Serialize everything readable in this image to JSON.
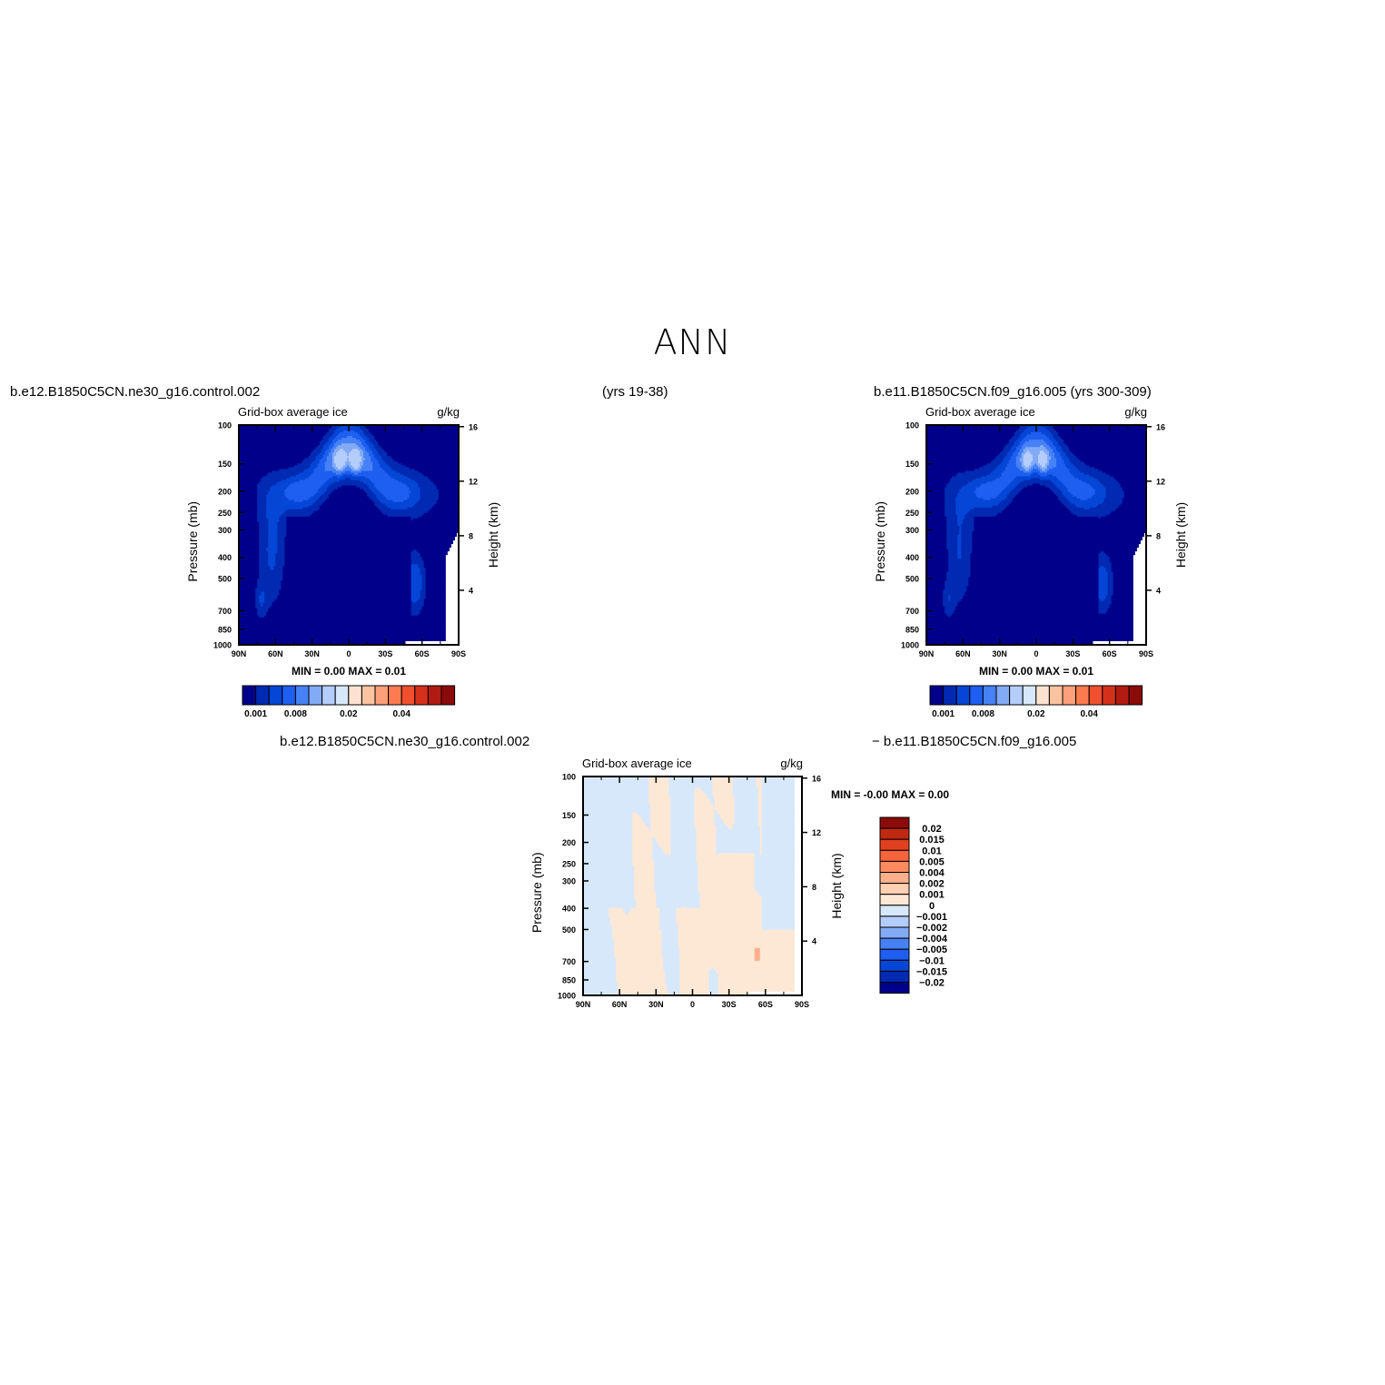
{
  "page_title": "ANN",
  "labels": {
    "case1": "b.e12.B1850C5CN.ne30_g16.control.002",
    "case1_years": "(yrs 19-38)",
    "case2": "b.e11.B1850C5CN.f09_g16.005 (yrs 300-309)",
    "diff_case1": "b.e12.B1850C5CN.ne30_g16.control.002",
    "diff_case2": "− b.e11.B1850C5CN.f09_g16.005"
  },
  "colors": {
    "field": [
      "#00008b",
      "#002ab2",
      "#0546d6",
      "#1e5ef0",
      "#4682f5",
      "#82aaf5",
      "#b4cdfa",
      "#d7e8fb",
      "#fde3cf",
      "#fcc3a1",
      "#fca079",
      "#fa7b4f",
      "#f0502d",
      "#d5301a",
      "#b21a12",
      "#8b0a0a"
    ],
    "diff": [
      "#00008b",
      "#002ab2",
      "#0546d6",
      "#1e5ef0",
      "#4682f5",
      "#82aaf5",
      "#b4cdfa",
      "#d7e8fb",
      "#fde8d6",
      "#fdd0b4",
      "#fcb08c",
      "#fc8a5f",
      "#f5643a",
      "#e0401f",
      "#c02812",
      "#8b0a0a"
    ],
    "missing": "#ffffff"
  },
  "chart_data": [
    {
      "type": "heatmap",
      "title": "Grid-box average ice",
      "units": "g/kg",
      "xlabel": "",
      "ylabel": "Pressure (mb)",
      "ylabel_right": "Height (km)",
      "x_ticks": [
        "90N",
        "60N",
        "30N",
        "0",
        "30S",
        "60S",
        "90S"
      ],
      "x_tick_values": [
        90,
        60,
        30,
        0,
        -30,
        -60,
        -90
      ],
      "y_ticks": [
        "100",
        "150",
        "200",
        "250",
        "300",
        "400",
        "500",
        "700",
        "850",
        "1000"
      ],
      "y_tick_values": [
        100,
        150,
        200,
        250,
        300,
        400,
        500,
        700,
        850,
        1000
      ],
      "y_scale": "log",
      "y_right_ticks": [
        "16",
        "12",
        "8",
        "4"
      ],
      "y_right_tick_values": [
        16,
        12,
        8,
        4
      ],
      "min_max_label": "MIN =     0.00   MAX =     0.01",
      "legend_labels": [
        "0.001",
        "0.008",
        "0.02",
        "0.04"
      ],
      "legend_label_levels": [
        0,
        3,
        7,
        11
      ],
      "legend_boxes": 16,
      "legend_position": "below"
    },
    {
      "type": "heatmap",
      "title": "Grid-box average ice",
      "units": "g/kg",
      "xlabel": "",
      "ylabel": "Pressure (mb)",
      "ylabel_right": "Height (km)",
      "x_ticks": [
        "90N",
        "60N",
        "30N",
        "0",
        "30S",
        "60S",
        "90S"
      ],
      "x_tick_values": [
        90,
        60,
        30,
        0,
        -30,
        -60,
        -90
      ],
      "y_ticks": [
        "100",
        "150",
        "200",
        "250",
        "300",
        "400",
        "500",
        "700",
        "850",
        "1000"
      ],
      "y_tick_values": [
        100,
        150,
        200,
        250,
        300,
        400,
        500,
        700,
        850,
        1000
      ],
      "y_scale": "log",
      "y_right_ticks": [
        "16",
        "12",
        "8",
        "4"
      ],
      "y_right_tick_values": [
        16,
        12,
        8,
        4
      ],
      "min_max_label": "MIN =     0.00   MAX =     0.01",
      "legend_labels": [
        "0.001",
        "0.008",
        "0.02",
        "0.04"
      ],
      "legend_label_levels": [
        0,
        3,
        7,
        11
      ],
      "legend_boxes": 16,
      "legend_position": "below"
    },
    {
      "type": "heatmap",
      "title": "Grid-box average ice",
      "units": "g/kg",
      "xlabel": "",
      "ylabel": "Pressure (mb)",
      "ylabel_right": "Height (km)",
      "x_ticks": [
        "90N",
        "60N",
        "30N",
        "0",
        "30S",
        "60S",
        "90S"
      ],
      "x_tick_values": [
        90,
        60,
        30,
        0,
        -30,
        -60,
        -90
      ],
      "y_ticks": [
        "100",
        "150",
        "200",
        "250",
        "300",
        "400",
        "500",
        "700",
        "850",
        "1000"
      ],
      "y_tick_values": [
        100,
        150,
        200,
        250,
        300,
        400,
        500,
        700,
        850,
        1000
      ],
      "y_scale": "log",
      "y_right_ticks": [
        "16",
        "12",
        "8",
        "4"
      ],
      "y_right_tick_values": [
        16,
        12,
        8,
        4
      ],
      "min_max_label": "MIN =    -0.00   MAX =     0.00",
      "legend_labels": [
        "0.02",
        "0.015",
        "0.01",
        "0.005",
        "0.004",
        "0.002",
        "0.001",
        "0",
        "-0.001",
        "-0.002",
        "-0.004",
        "-0.005",
        "-0.01",
        "-0.015",
        "-0.02"
      ],
      "legend_boxes": 16,
      "legend_position": "right"
    }
  ]
}
